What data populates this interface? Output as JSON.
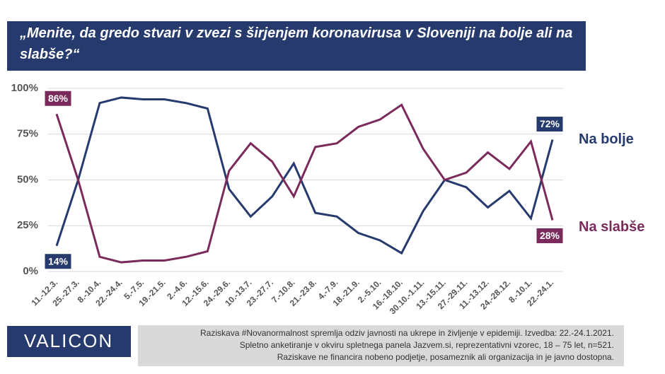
{
  "chart_data": {
    "type": "line",
    "title": "„Menite, da gredo stvari v zvezi s širjenjem koronavirusa v Sloveniji na bolje ali na slabše?“",
    "categories": [
      "11.-12.3.",
      "25.-27.3.",
      "8.-10.4.",
      "22.-24.4.",
      "5.-7.5.",
      "19.-21.5.",
      "2.-4.6.",
      "12.-15.6.",
      "24.-29.6.",
      "10.-13.7.",
      "23.-27.7.",
      "7.-10.8.",
      "21.-23.8.",
      "4.-7.9.",
      "18.-21.9.",
      "2.-5.10.",
      "16.-18.10.",
      "30.10.-1.11.",
      "13.-15.11.",
      "27.-29.11.",
      "11.-13.12.",
      "24.-28.12.",
      "8.-10.1.",
      "22.-24.1."
    ],
    "series": [
      {
        "name": "Na bolje",
        "color": "#263a6e",
        "values": [
          14,
          50,
          92,
          95,
          94,
          94,
          92,
          89,
          45,
          30,
          41,
          59,
          32,
          30,
          21,
          17,
          10,
          33,
          50,
          46,
          35,
          44,
          29,
          72
        ],
        "value_labels": [
          "14%",
          null,
          null,
          null,
          null,
          null,
          null,
          null,
          null,
          null,
          null,
          null,
          null,
          null,
          null,
          null,
          null,
          null,
          null,
          null,
          null,
          null,
          null,
          "72%"
        ]
      },
      {
        "name": "Na slabše",
        "color": "#7b2a5c",
        "values": [
          86,
          50,
          8,
          5,
          6,
          6,
          8,
          11,
          55,
          70,
          60,
          41,
          68,
          70,
          79,
          83,
          91,
          67,
          50,
          54,
          65,
          56,
          71,
          28
        ],
        "value_labels": [
          "86%",
          null,
          null,
          null,
          null,
          null,
          null,
          null,
          null,
          null,
          null,
          null,
          null,
          null,
          null,
          null,
          null,
          null,
          null,
          null,
          null,
          null,
          null,
          "28%"
        ]
      }
    ],
    "ylim": [
      0,
      100
    ],
    "yticks": [
      {
        "value": 0,
        "label": "0%"
      },
      {
        "value": 25,
        "label": "25%"
      },
      {
        "value": 50,
        "label": "50%"
      },
      {
        "value": 75,
        "label": "75%"
      },
      {
        "value": 100,
        "label": "100%"
      }
    ],
    "grid": true
  },
  "logo": "VALICON",
  "footnote": [
    "Raziskava #Novanormalnost spremlja odziv javnosti na ukrepe in življenje v epidemiji. Izvedba: 22.-24.1.2021.",
    "Spletno anketiranje v okviru spletnega panela Jazvem.si, reprezentativni vzorec, 18 – 75 let, n=521.",
    "Raziskave ne financira nobeno podjetje, posameznik ali organizacija in je javno dostopna."
  ]
}
